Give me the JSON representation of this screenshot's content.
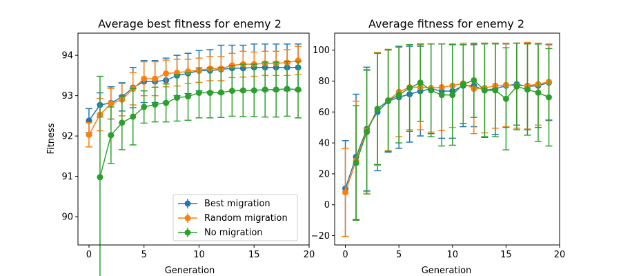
{
  "chart_data": [
    {
      "type": "line",
      "title": "Average best fitness for enemy 2",
      "xlabel": "Generation",
      "ylabel": "Fitness",
      "xlim": [
        -1,
        20
      ],
      "ylim": [
        89.3,
        94.55
      ],
      "xticks": [
        0,
        5,
        10,
        15,
        20
      ],
      "yticks": [
        90,
        91,
        92,
        93,
        94
      ],
      "grid": false,
      "legend_position": "lower-right",
      "x": [
        0,
        1,
        2,
        3,
        4,
        5,
        6,
        7,
        8,
        9,
        10,
        11,
        12,
        13,
        14,
        15,
        16,
        17,
        18,
        19
      ],
      "series": [
        {
          "name": "Best migration",
          "color": "#1f77b4",
          "values": [
            92.38,
            92.77,
            92.82,
            92.97,
            93.2,
            93.35,
            93.35,
            93.38,
            93.5,
            93.55,
            93.62,
            93.62,
            93.65,
            93.68,
            93.68,
            93.7,
            93.7,
            93.7,
            93.7,
            93.7
          ],
          "error": [
            0.3,
            0.3,
            0.4,
            0.35,
            0.5,
            0.52,
            0.52,
            0.55,
            0.5,
            0.5,
            0.5,
            0.52,
            0.6,
            0.57,
            0.57,
            0.58,
            0.58,
            0.58,
            0.58,
            0.58
          ]
        },
        {
          "name": "Random migration",
          "color": "#ff7f0e",
          "values": [
            92.03,
            92.53,
            92.8,
            92.9,
            93.17,
            93.42,
            93.42,
            93.55,
            93.57,
            93.6,
            93.63,
            93.67,
            93.67,
            93.75,
            93.78,
            93.78,
            93.8,
            93.8,
            93.82,
            93.87
          ],
          "error": [
            0.3,
            0.4,
            0.38,
            0.4,
            0.4,
            0.42,
            0.42,
            0.33,
            0.33,
            0.3,
            0.3,
            0.3,
            0.3,
            0.3,
            0.32,
            0.3,
            0.3,
            0.3,
            0.32,
            0.35
          ]
        },
        {
          "name": "No migration",
          "color": "#2ca02c",
          "values": [
            null,
            90.98,
            92.02,
            92.33,
            92.48,
            92.72,
            92.78,
            92.82,
            92.95,
            92.98,
            93.07,
            93.07,
            93.08,
            93.12,
            93.13,
            93.13,
            93.15,
            93.15,
            93.17,
            93.15
          ],
          "error": [
            null,
            2.5,
            0.7,
            0.67,
            0.7,
            0.4,
            0.43,
            0.47,
            0.58,
            0.59,
            0.62,
            0.62,
            0.62,
            0.63,
            0.65,
            0.65,
            0.68,
            0.68,
            0.68,
            0.7
          ]
        }
      ]
    },
    {
      "type": "line",
      "title": "Average fitness for enemy 2",
      "xlabel": "Generation",
      "ylabel": "",
      "xlim": [
        -1,
        20
      ],
      "ylim": [
        -26,
        111
      ],
      "xticks": [
        0,
        5,
        10,
        15,
        20
      ],
      "yticks": [
        -20,
        0,
        20,
        40,
        60,
        80,
        100
      ],
      "grid": false,
      "x": [
        0,
        1,
        2,
        3,
        4,
        5,
        6,
        7,
        8,
        9,
        10,
        11,
        12,
        13,
        14,
        15,
        16,
        17,
        18,
        19
      ],
      "series": [
        {
          "name": "Best migration",
          "color": "#1f77b4",
          "values": [
            10.5,
            31,
            49,
            60,
            67,
            69.5,
            71.5,
            73.5,
            75,
            73.5,
            73.5,
            77,
            77,
            74,
            75,
            77,
            78,
            76.5,
            77,
            79
          ],
          "error": [
            31,
            40.5,
            40,
            38,
            33,
            33,
            31,
            29,
            29,
            30.5,
            30.5,
            26.5,
            26.5,
            30.5,
            29.5,
            27,
            26.5,
            28,
            27,
            24.5
          ]
        },
        {
          "name": "Random migration",
          "color": "#ff7f0e",
          "values": [
            8,
            28.5,
            48,
            62,
            67.5,
            73,
            76,
            76,
            75.5,
            76,
            77,
            78.5,
            75,
            75.5,
            77,
            77.5,
            77,
            77,
            78,
            79.5
          ],
          "error": [
            28.5,
            38.5,
            39.5,
            36.5,
            32.5,
            29,
            27.5,
            27.5,
            28.5,
            28,
            27,
            26,
            29,
            29,
            27.5,
            27,
            27.5,
            28,
            26.5,
            24.5
          ]
        },
        {
          "name": "No migration",
          "color": "#2ca02c",
          "values": [
            null,
            27,
            47,
            62,
            67.5,
            71,
            75.5,
            79,
            74,
            71,
            71,
            78,
            80.5,
            74,
            74,
            68.5,
            76.5,
            74.5,
            72.5,
            69.5
          ],
          "error": [
            null,
            37,
            40,
            36,
            33,
            31,
            28,
            25,
            30,
            33,
            32.5,
            25.5,
            24,
            30,
            30,
            33,
            28,
            29.5,
            31.5,
            31.5
          ]
        }
      ]
    }
  ]
}
